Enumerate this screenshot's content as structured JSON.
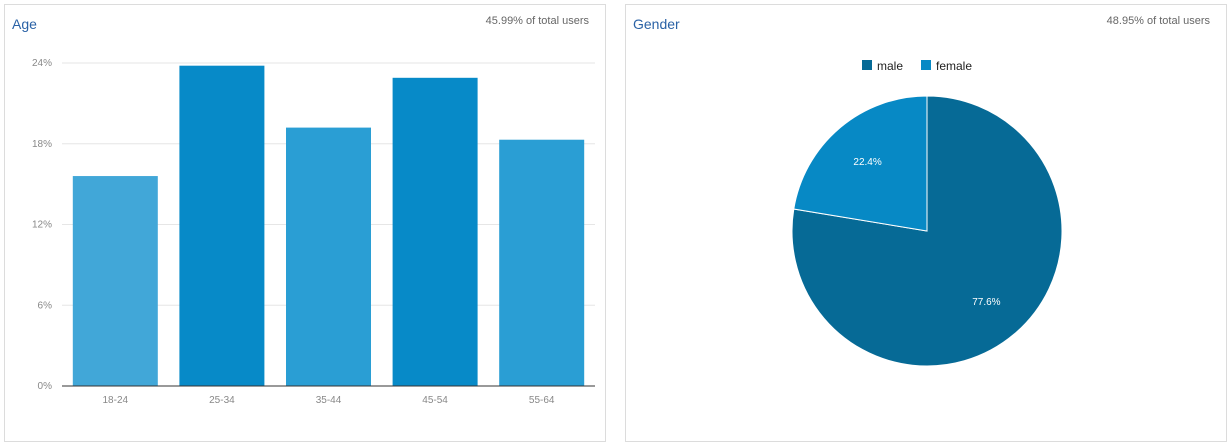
{
  "panels": {
    "age": {
      "title": "Age",
      "subtitle": "45.99% of total users"
    },
    "gender": {
      "title": "Gender",
      "subtitle": "48.95% of total users"
    }
  },
  "chart_data": [
    {
      "type": "bar",
      "title": "Age",
      "subtitle": "45.99% of total users",
      "categories": [
        "18-24",
        "25-34",
        "35-44",
        "45-54",
        "55-64"
      ],
      "values": [
        15.6,
        23.8,
        19.2,
        22.9,
        18.3
      ],
      "colors": [
        "#41a7d8",
        "#078ac8",
        "#2a9ed4",
        "#078ac8",
        "#2a9ed4"
      ],
      "ylim": [
        0,
        24
      ],
      "yticks": [
        0,
        6,
        12,
        18,
        24
      ],
      "ytick_labels": [
        "0%",
        "6%",
        "12%",
        "18%",
        "24%"
      ],
      "grid": true
    },
    {
      "type": "pie",
      "title": "Gender",
      "subtitle": "48.95% of total users",
      "labels": [
        "male",
        "female"
      ],
      "values": [
        77.6,
        22.4
      ],
      "value_labels": [
        "77.6%",
        "22.4%"
      ],
      "colors": [
        "#066a96",
        "#0789c5"
      ],
      "legend_position": "top"
    }
  ]
}
